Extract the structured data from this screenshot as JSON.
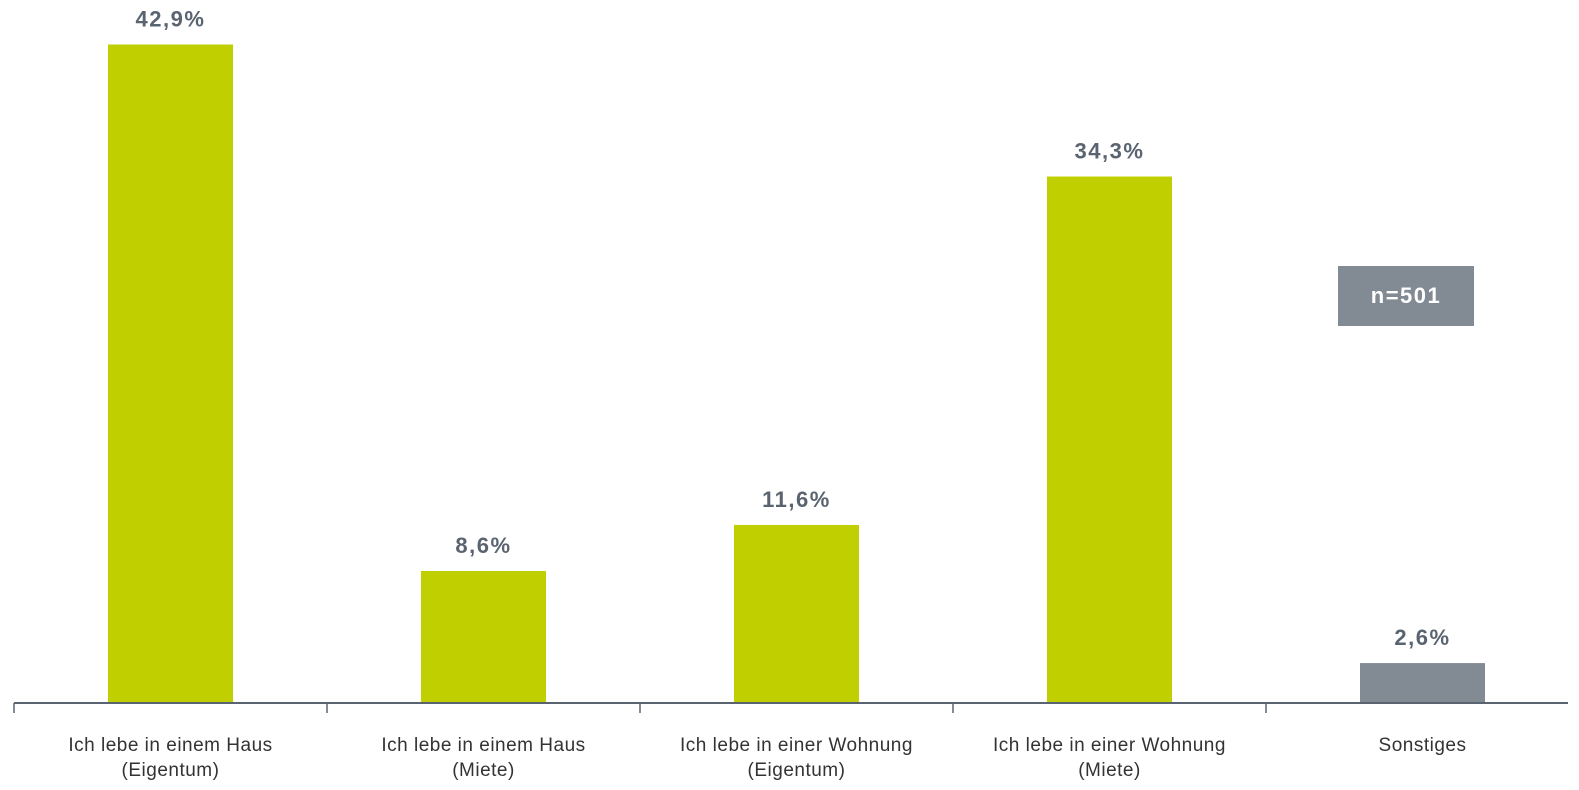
{
  "chart_data": {
    "type": "bar",
    "categories": [
      [
        "Ich lebe in einem Haus",
        "(Eigentum)"
      ],
      [
        "Ich lebe in einem Haus",
        "(Miete)"
      ],
      [
        "Ich lebe in einer Wohnung",
        "(Eigentum)"
      ],
      [
        "Ich lebe in einer Wohnung",
        "(Miete)"
      ],
      [
        "Sonstiges"
      ]
    ],
    "values": [
      42.9,
      8.6,
      11.6,
      34.3,
      2.6
    ],
    "value_labels": [
      "42,9%",
      "8,6%",
      "11,6%",
      "34,3%",
      "2,6%"
    ],
    "colors": [
      "#c0cf00",
      "#c0cf00",
      "#c0cf00",
      "#c0cf00",
      "#828a93"
    ],
    "ylim": [
      0,
      45.8
    ],
    "annotation": "n=501"
  }
}
